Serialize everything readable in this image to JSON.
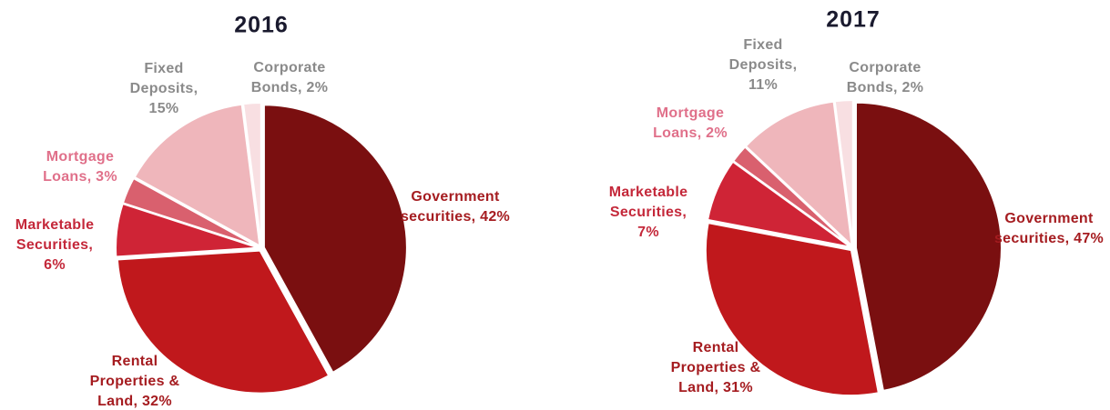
{
  "chart_data": [
    {
      "type": "pie",
      "title": "2016",
      "values": [
        42,
        32,
        6,
        3,
        15,
        2
      ],
      "value_labels": [
        "Government securities, 42%",
        "Rental Properties & Land, 32%",
        "Marketable Securities, 6%",
        "Mortgage Loans, 3%",
        "Fixed Deposits, 15%",
        "Corporate Bonds, 2%"
      ],
      "colors": [
        "#7a0f10",
        "#c0181c",
        "#cf2436",
        "#d9606e",
        "#efb6bb",
        "#f8dfe2"
      ],
      "label_colors": [
        "#a51c20",
        "#a51c20",
        "#c4283a",
        "#e0708a",
        "#8a8a8a",
        "#8a8a8a"
      ]
    },
    {
      "type": "pie",
      "title": "2017",
      "values": [
        47,
        31,
        7,
        2,
        11,
        2
      ],
      "value_labels": [
        "Government securities, 47%",
        "Rental Properties & Land, 31%",
        "Marketable Securities, 7%",
        "Mortgage Loans, 2%",
        "Fixed Deposits, 11%",
        "Corporate Bonds, 2%"
      ],
      "colors": [
        "#7a0f10",
        "#c0181c",
        "#cf2436",
        "#d9606e",
        "#efb6bb",
        "#f8dfe2"
      ],
      "label_colors": [
        "#a51c20",
        "#a51c20",
        "#c4283a",
        "#e0708a",
        "#8a8a8a",
        "#8a8a8a"
      ]
    }
  ]
}
